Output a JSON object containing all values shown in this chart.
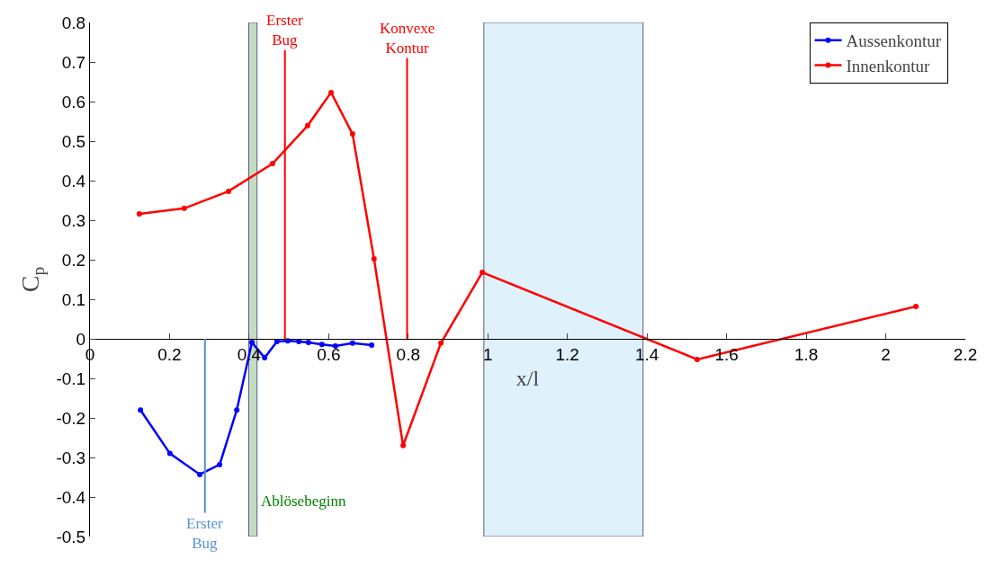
{
  "chart_data": {
    "type": "line",
    "xlabel": "x/l",
    "ylabel": "C$_{p}$",
    "xlim": [
      0,
      2.2
    ],
    "xticks": [
      0,
      0.2,
      0.4,
      0.6,
      0.8,
      1,
      1.2,
      1.4,
      1.6,
      1.8,
      2,
      2.2
    ],
    "ylim": [
      -0.5,
      0.8
    ],
    "yticks": [
      -0.5,
      -0.4,
      -0.3,
      -0.2,
      -0.1,
      0,
      0.1,
      0.2,
      0.3,
      0.4,
      0.5,
      0.6,
      0.7,
      0.8
    ],
    "grid": false,
    "legend": "top right",
    "marker": "circle",
    "line_style": "solid",
    "series": [
      {
        "name": "Aussenkontur",
        "color": "#0000ff",
        "x": [
          0.127,
          0.201,
          0.276,
          0.326,
          0.369,
          0.407,
          0.439,
          0.47,
          0.497,
          0.525,
          0.549,
          0.583,
          0.617,
          0.66,
          0.708
        ],
        "values": [
          -0.18,
          -0.29,
          -0.343,
          -0.318,
          -0.18,
          -0.009,
          -0.048,
          -0.007,
          -0.005,
          -0.007,
          -0.009,
          -0.014,
          -0.018,
          -0.011,
          -0.016
        ]
      },
      {
        "name": "Innenkontur",
        "color": "#ff0000",
        "x": [
          0.124,
          0.237,
          0.348,
          0.459,
          0.547,
          0.606,
          0.66,
          0.714,
          0.787,
          0.882,
          0.986,
          1.526,
          2.076
        ],
        "values": [
          0.316,
          0.33,
          0.373,
          0.443,
          0.539,
          0.623,
          0.518,
          0.202,
          -0.27,
          -0.011,
          0.168,
          -0.052,
          0.082
        ]
      }
    ],
    "ref_lines": [
      {
        "axis": "x",
        "value": 0.49,
        "color": "#ff0000"
      },
      {
        "axis": "x",
        "value": 0.797,
        "color": "#ff0000"
      },
      {
        "axis": "x",
        "value": 0.289,
        "color": "#5b8fd8"
      }
    ],
    "bands": [
      {
        "axis": "x",
        "from": 0.399,
        "to": 0.42,
        "color": "#c4dcc4"
      },
      {
        "axis": "x",
        "from": 0.99,
        "to": 1.39,
        "color": "#dff2fc"
      }
    ],
    "annotations": [
      {
        "text": "Erster\nBug",
        "x": 0.49,
        "y": 0.73
      },
      {
        "text": "Konvexe\nKontur",
        "x": 0.797,
        "y": 0.71
      },
      {
        "text": "Erster\nBug",
        "x": 0.289,
        "y": -0.44
      },
      {
        "text": "Ablösebeginn",
        "x": 0.425,
        "y": -0.41
      }
    ]
  }
}
